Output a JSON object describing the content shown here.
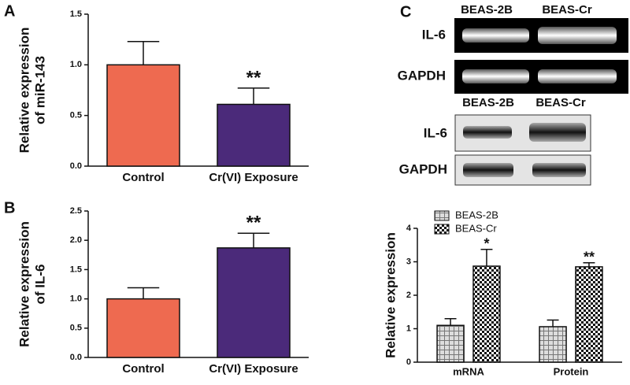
{
  "chart_data": [
    {
      "type": "bar",
      "panel_label": "A",
      "ylabel": [
        "Relative expression",
        "of miR-143"
      ],
      "categories": [
        "Control",
        "Cr(VI) Exposure"
      ],
      "values": [
        1.0,
        0.61
      ],
      "errors": [
        0.23,
        0.16
      ],
      "colors": [
        "#ee6a50",
        "#4b2a7a"
      ],
      "ylim": [
        0,
        1.5
      ],
      "yticks": [
        {
          "value": 0,
          "label": "0.0"
        },
        {
          "value": 0.5,
          "label": "0.5"
        },
        {
          "value": 1,
          "label": "1.0"
        },
        {
          "value": 1.5,
          "label": "1.5"
        }
      ],
      "annotations": [
        {
          "text": "**",
          "category": "Cr(VI) Exposure"
        }
      ]
    },
    {
      "type": "bar",
      "panel_label": "B",
      "ylabel": [
        "Relative expression",
        "of IL-6"
      ],
      "categories": [
        "Control",
        "Cr(VI) Exposure"
      ],
      "values": [
        1.0,
        1.87
      ],
      "errors": [
        0.19,
        0.25
      ],
      "colors": [
        "#ee6a50",
        "#4b2a7a"
      ],
      "ylim": [
        0,
        2.5
      ],
      "yticks": [
        {
          "value": 0,
          "label": "0.0"
        },
        {
          "value": 0.5,
          "label": "0.5"
        },
        {
          "value": 1,
          "label": "1.0"
        },
        {
          "value": 1.5,
          "label": "1.5"
        },
        {
          "value": 2,
          "label": "2.0"
        },
        {
          "value": 2.5,
          "label": "2.5"
        }
      ],
      "annotations": [
        {
          "text": "**",
          "category": "Cr(VI) Exposure"
        }
      ]
    },
    {
      "type": "bar",
      "ylabel": [
        "Relative expression"
      ],
      "categories": [
        "mRNA",
        "Protein"
      ],
      "series": [
        {
          "name": "BEAS-2B",
          "color": "#777777",
          "pattern": "grid",
          "values": [
            1.1,
            1.06
          ],
          "errors": [
            0.2,
            0.2
          ]
        },
        {
          "name": "BEAS-Cr",
          "color": "#111111",
          "pattern": "checker",
          "values": [
            2.87,
            2.85
          ],
          "errors": [
            0.5,
            0.12
          ]
        }
      ],
      "ylim": [
        0,
        4
      ],
      "yticks": [
        0,
        1,
        2,
        3,
        4
      ],
      "legend": "upper left",
      "annotations": [
        {
          "text": "*",
          "category": "mRNA",
          "series": "BEAS-Cr"
        },
        {
          "text": "**",
          "category": "Protein",
          "series": "BEAS-Cr"
        }
      ]
    }
  ],
  "panel_c_blots": {
    "panel_label": "C",
    "pcr": {
      "columns": [
        "BEAS-2B",
        "BEAS-Cr"
      ],
      "rows": [
        "IL-6",
        "GAPDH"
      ]
    },
    "western": {
      "columns": [
        "BEAS-2B",
        "BEAS-Cr"
      ],
      "rows": [
        "IL-6",
        "GAPDH"
      ]
    }
  }
}
